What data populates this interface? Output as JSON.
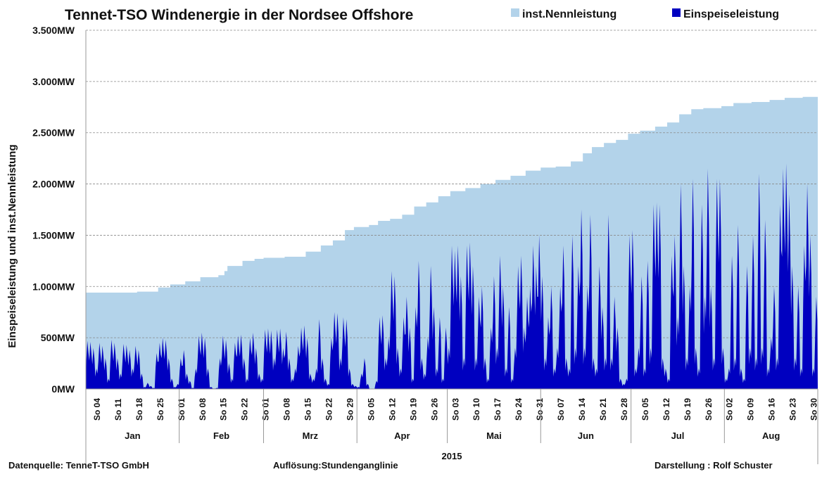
{
  "chart_data": {
    "type": "area",
    "title": "Tennet-TSO  Windenergie in der Nordsee  Offshore",
    "ylabel": "Einspeiseleistung und inst.Nennleistung",
    "xlabel": "2015",
    "ylim": [
      0,
      3500
    ],
    "yticks": [
      0,
      500,
      1000,
      1500,
      2000,
      2500,
      3000,
      3500
    ],
    "ytick_labels": [
      "0MW",
      "500MW",
      "1.000MW",
      "1.500MW",
      "2.000MW",
      "2.500MW",
      "3.000MW",
      "3.500MW"
    ],
    "grid": true,
    "legend_position": "top-right",
    "days_total": 243,
    "months": [
      {
        "label": "Jan",
        "start_day": 0,
        "days": 31
      },
      {
        "label": "Feb",
        "start_day": 31,
        "days": 28
      },
      {
        "label": "Mrz",
        "start_day": 59,
        "days": 31
      },
      {
        "label": "Apr",
        "start_day": 90,
        "days": 30
      },
      {
        "label": "Mai",
        "start_day": 120,
        "days": 31
      },
      {
        "label": "Jun",
        "start_day": 151,
        "days": 30
      },
      {
        "label": "Jul",
        "start_day": 181,
        "days": 31
      },
      {
        "label": "Aug",
        "start_day": 212,
        "days": 31
      }
    ],
    "first_sunday_day": 3,
    "week_labels": [
      "So 04",
      "So 11",
      "So 18",
      "So 25",
      "So 01",
      "So 08",
      "So 15",
      "So 22",
      "So 01",
      "So 08",
      "So 15",
      "So 22",
      "So 29",
      "So 05",
      "So 12",
      "So 19",
      "So 26",
      "So 03",
      "So 10",
      "So 17",
      "So 24",
      "So 31",
      "So 07",
      "So 14",
      "So 21",
      "So 28",
      "So 05",
      "So 12",
      "So 19",
      "So 26",
      "So 02",
      "So 09",
      "So 16",
      "So 23",
      "So 30"
    ],
    "series": [
      {
        "name": "inst.Nennleistung",
        "color": "#b3d3ea",
        "points": [
          [
            0,
            940
          ],
          [
            17,
            950
          ],
          [
            24,
            990
          ],
          [
            28,
            1020
          ],
          [
            33,
            1050
          ],
          [
            38,
            1090
          ],
          [
            44,
            1110
          ],
          [
            46,
            1150
          ],
          [
            47,
            1200
          ],
          [
            52,
            1250
          ],
          [
            56,
            1270
          ],
          [
            59,
            1280
          ],
          [
            66,
            1290
          ],
          [
            73,
            1340
          ],
          [
            78,
            1400
          ],
          [
            82,
            1450
          ],
          [
            86,
            1550
          ],
          [
            89,
            1580
          ],
          [
            94,
            1600
          ],
          [
            97,
            1640
          ],
          [
            101,
            1660
          ],
          [
            105,
            1700
          ],
          [
            109,
            1780
          ],
          [
            113,
            1820
          ],
          [
            117,
            1880
          ],
          [
            121,
            1930
          ],
          [
            126,
            1960
          ],
          [
            131,
            2000
          ],
          [
            136,
            2040
          ],
          [
            141,
            2080
          ],
          [
            146,
            2130
          ],
          [
            151,
            2160
          ],
          [
            156,
            2170
          ],
          [
            161,
            2220
          ],
          [
            165,
            2300
          ],
          [
            168,
            2360
          ],
          [
            172,
            2400
          ],
          [
            176,
            2430
          ],
          [
            180,
            2490
          ],
          [
            184,
            2520
          ],
          [
            189,
            2560
          ],
          [
            193,
            2600
          ],
          [
            197,
            2680
          ],
          [
            201,
            2730
          ],
          [
            205,
            2740
          ],
          [
            211,
            2760
          ],
          [
            215,
            2790
          ],
          [
            221,
            2800
          ],
          [
            227,
            2820
          ],
          [
            232,
            2840
          ],
          [
            238,
            2850
          ],
          [
            243,
            2860
          ]
        ]
      },
      {
        "name": "Einspeiseleistung",
        "color": "#0000c0",
        "daily": [
          470,
          460,
          400,
          200,
          450,
          420,
          300,
          100,
          480,
          450,
          300,
          150,
          440,
          430,
          380,
          200,
          420,
          380,
          150,
          20,
          60,
          30,
          10,
          350,
          450,
          500,
          480,
          300,
          100,
          20,
          50,
          300,
          380,
          150,
          80,
          10,
          200,
          520,
          550,
          500,
          200,
          20,
          5,
          10,
          300,
          520,
          480,
          250,
          100,
          450,
          520,
          530,
          300,
          100,
          500,
          550,
          400,
          150,
          100,
          580,
          590,
          570,
          300,
          580,
          590,
          400,
          560,
          300,
          100,
          200,
          420,
          600,
          620,
          500,
          150,
          100,
          200,
          680,
          300,
          100,
          50,
          500,
          750,
          740,
          300,
          700,
          680,
          200,
          50,
          30,
          20,
          150,
          300,
          50,
          0,
          0,
          80,
          700,
          720,
          300,
          500,
          1150,
          1100,
          400,
          200,
          700,
          900,
          600,
          100,
          800,
          1250,
          300,
          150,
          500,
          1200,
          800,
          200,
          700,
          100,
          600,
          400,
          1400,
          1350,
          1400,
          1100,
          300,
          1400,
          1430,
          1200,
          300,
          900,
          1000,
          300,
          100,
          600,
          1100,
          400,
          1300,
          1000,
          200,
          800,
          100,
          400,
          1200,
          1300,
          600,
          900,
          1000,
          1400,
          1200,
          1500,
          1100,
          300,
          700,
          1000,
          200,
          400,
          1000,
          1400,
          300,
          200,
          1500,
          400,
          1200,
          1750,
          400,
          1000,
          1700,
          300,
          200,
          1200,
          800,
          300,
          1700,
          300,
          900,
          600,
          100,
          50,
          100,
          1500,
          1550,
          200,
          400,
          1100,
          200,
          1250,
          400,
          1800,
          1820,
          1800,
          300,
          200,
          100,
          1300,
          1500,
          700,
          2000,
          1200,
          300,
          1000,
          2050,
          400,
          200,
          1800,
          900,
          2150,
          1000,
          300,
          2050,
          2050,
          400,
          100,
          200,
          1300,
          300,
          1600,
          200,
          100,
          1200,
          400,
          1500,
          300,
          2100,
          400,
          1650,
          200,
          500,
          1000,
          300,
          1800,
          2150,
          2200,
          1900,
          1200,
          300,
          1000,
          200,
          1400,
          2000,
          1500,
          200,
          900
        ]
      }
    ]
  },
  "footer": {
    "source": "Datenquelle: TenneT-TSO GmbH",
    "resolution": "Auflösung:Stundenganglinie",
    "author": "Darstellung : Rolf Schuster"
  }
}
